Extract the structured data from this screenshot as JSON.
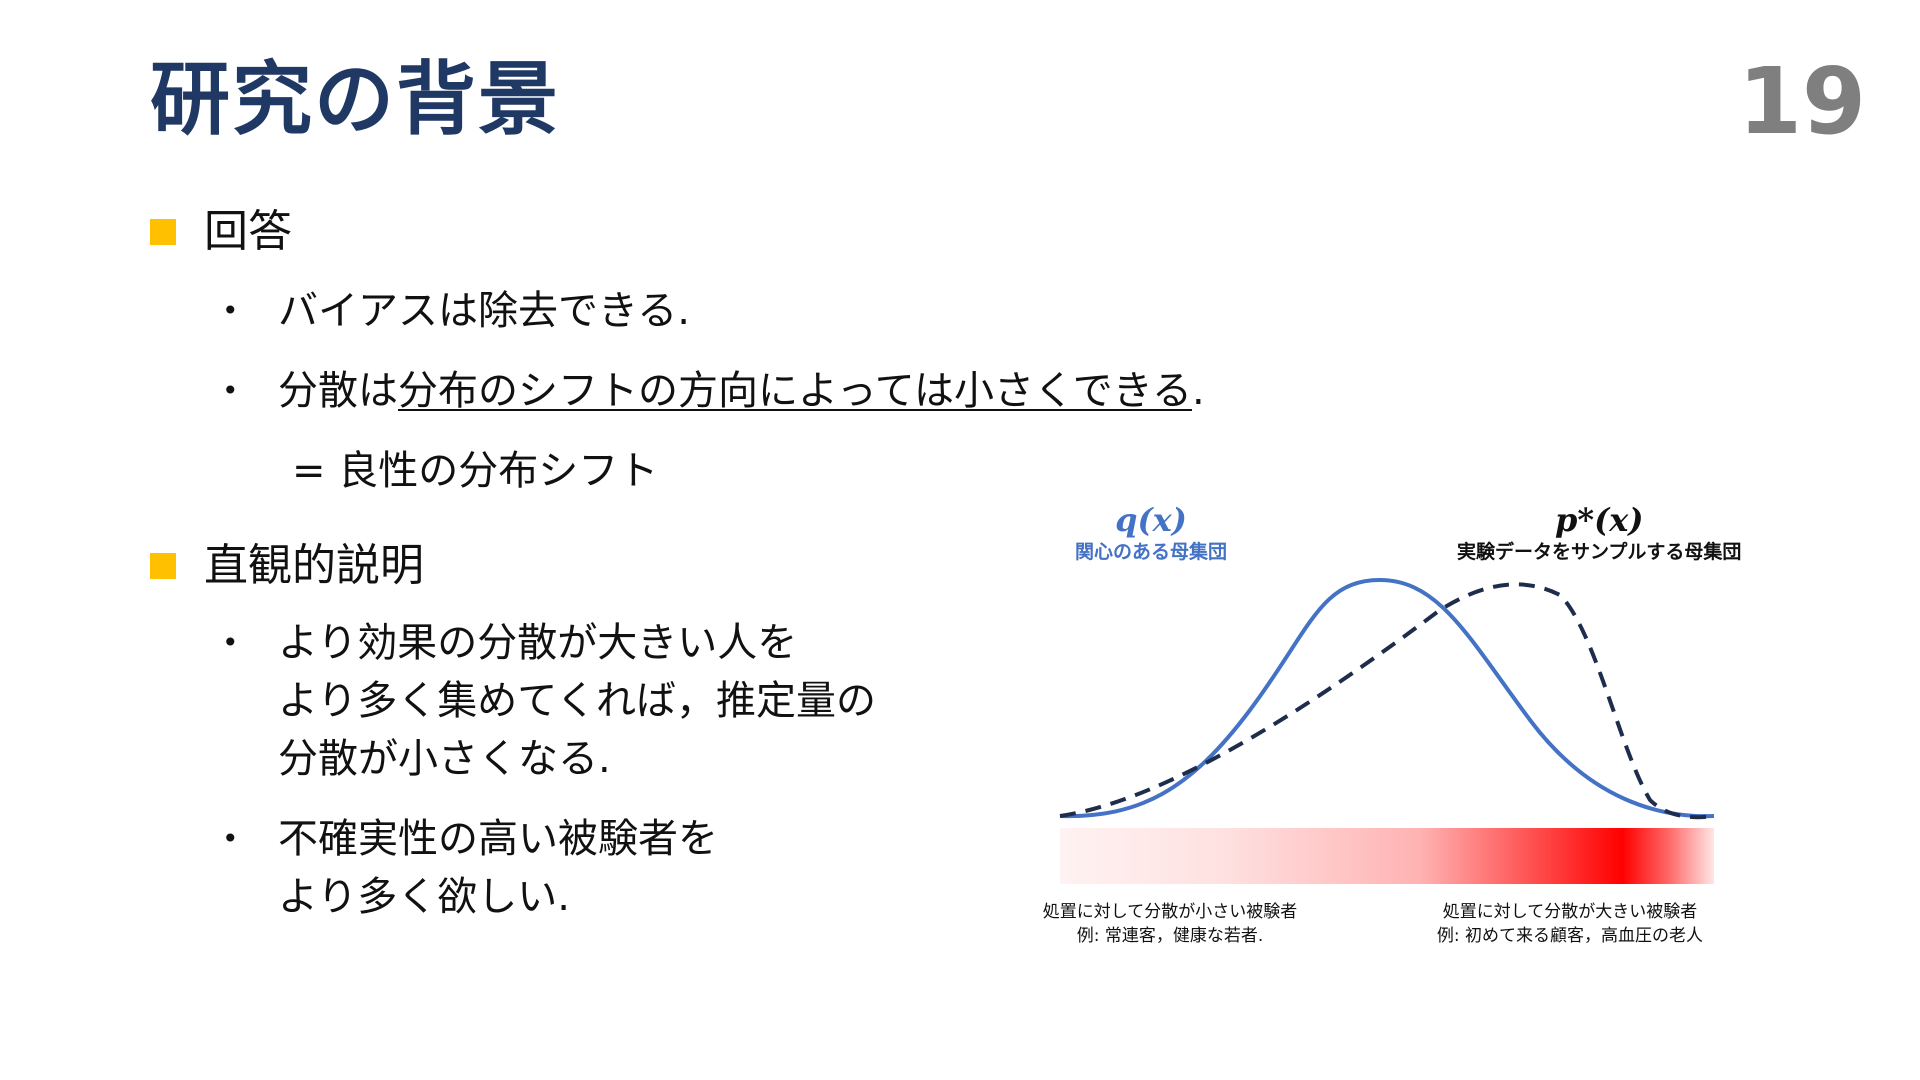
{
  "slide": {
    "title": "研究の背景",
    "page_number": "19"
  },
  "answer": {
    "heading": "回答",
    "bullets": [
      {
        "text": "バイアスは除去できる."
      },
      {
        "prefix": "分散は",
        "underlined": "分布のシフトの方向によっては小さくできる",
        "suffix": "."
      }
    ],
    "note": "= 良性の分布シフト"
  },
  "intuition": {
    "heading": "直観的説明",
    "bullets": [
      {
        "text": "より効果の分散が大きい人を\nより多く集めてくれば，推定量の\n分散が小さくなる."
      },
      {
        "text": "不確実性の高い被験者を\nより多く欲しい."
      }
    ]
  },
  "figure": {
    "q_label": "q(x)",
    "q_caption": "関心のある母集団",
    "p_label": "p*(x)",
    "p_caption": "実験データをサンプルする母集団",
    "q_color": "#4472c4",
    "p_color": "#1f2d4d",
    "gradient_color": "#ff0000",
    "bottom_left": "処置に対して分散が小さい被験者\n例: 常連客，健康な若者.",
    "bottom_right": "処置に対して分散が大きい被験者\n例: 初めて来る顧客，高血圧の老人"
  },
  "colors": {
    "title": "#1f3864",
    "page_number": "#7f7f7f",
    "marker": "#ffc000"
  }
}
